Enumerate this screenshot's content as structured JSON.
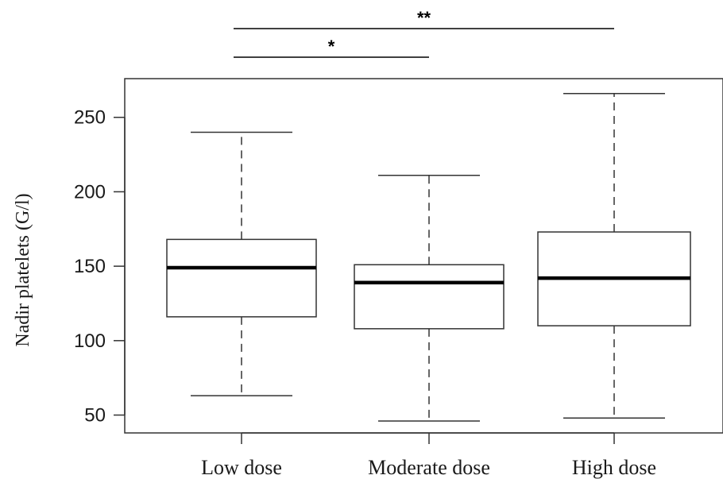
{
  "chart_data": {
    "type": "box",
    "ylabel": "Nadir platelets (G/l)",
    "yticks": [
      50,
      100,
      150,
      200,
      250
    ],
    "ylim": [
      38,
      276
    ],
    "grid": false,
    "legend": "none",
    "boxes": [
      {
        "category": "Low dose",
        "whisker_low": 63,
        "q1": 116,
        "median": 149,
        "q3": 168,
        "whisker_high": 240
      },
      {
        "category": "Moderate dose",
        "whisker_low": 46,
        "q1": 108,
        "median": 139,
        "q3": 151,
        "whisker_high": 211
      },
      {
        "category": "High dose",
        "whisker_low": 48,
        "q1": 110,
        "median": 142,
        "q3": 173,
        "whisker_high": 266
      }
    ],
    "significance": [
      {
        "from": "Low dose",
        "to": "Moderate dose",
        "label": "*"
      },
      {
        "from": "Low dose",
        "to": "High dose",
        "label": "**"
      }
    ]
  }
}
